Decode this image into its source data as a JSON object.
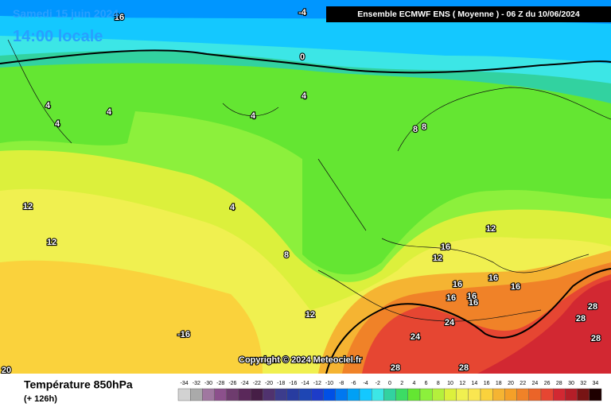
{
  "title": {
    "date": "Samedi 15 juin 2024",
    "time": "14:00 locale"
  },
  "header": "Ensemble ECMWF ENS  ( Moyenne )  -  06 Z du 10/06/2024",
  "copyright": "Copyright © 2024 Meteociel.fr",
  "footer": {
    "label": "Température 850hPa",
    "lead": "(+ 126h)"
  },
  "contour_labels": [
    -4,
    0,
    4,
    4,
    4,
    4,
    4,
    4,
    8,
    8,
    8,
    12,
    12,
    12,
    12,
    12,
    16,
    16,
    16,
    16,
    16,
    16,
    16,
    16,
    -16,
    20,
    24,
    24,
    28,
    28,
    28,
    28,
    28
  ],
  "scale": {
    "ticks": [
      -34,
      -32,
      -30,
      -28,
      -26,
      -24,
      -22,
      -20,
      -18,
      -16,
      -14,
      -12,
      -10,
      -8,
      -6,
      -4,
      -2,
      0,
      2,
      4,
      6,
      8,
      10,
      12,
      14,
      16,
      18,
      20,
      22,
      24,
      26,
      28,
      30,
      32,
      34
    ],
    "colors": [
      "#d2d2d2",
      "#aaaaaa",
      "#a078a0",
      "#8c508c",
      "#6e3c6e",
      "#5a285a",
      "#461e46",
      "#50326e",
      "#3c3c8c",
      "#283ca0",
      "#1e46b4",
      "#1e3cc8",
      "#0050e6",
      "#0078f0",
      "#00a0f5",
      "#14c8ff",
      "#3ce6e6",
      "#32d2a0",
      "#3cdc64",
      "#64e632",
      "#8cf03c",
      "#b4f03c",
      "#dcf03c",
      "#f0f050",
      "#fae650",
      "#fad23c",
      "#f5b432",
      "#f5a028",
      "#f08228",
      "#eb6428",
      "#e64632",
      "#d22832",
      "#b41e28",
      "#781414",
      "#1e0000"
    ]
  }
}
